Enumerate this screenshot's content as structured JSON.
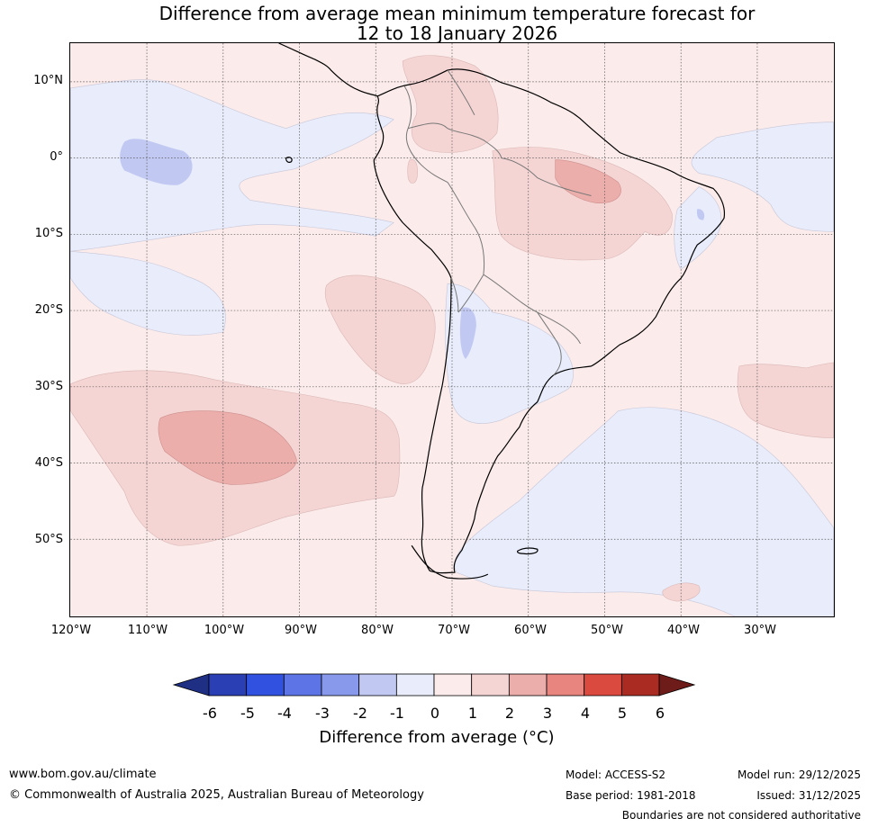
{
  "title": {
    "line1": "Difference from average mean minimum temperature forecast for",
    "line2": "12 to 18 January 2026"
  },
  "map": {
    "lat_labels": [
      "10°N",
      "0°",
      "10°S",
      "20°S",
      "30°S",
      "40°S",
      "50°S"
    ],
    "lon_labels": [
      "120°W",
      "110°W",
      "100°W",
      "90°W",
      "80°W",
      "70°W",
      "60°W",
      "50°W",
      "40°W",
      "30°W"
    ]
  },
  "colorbar": {
    "ticks": [
      "-6",
      "-5",
      "-4",
      "-3",
      "-2",
      "-1",
      "0",
      "1",
      "2",
      "3",
      "4",
      "5",
      "6"
    ],
    "colors": [
      "#1e2f84",
      "#2a3fb4",
      "#3152e0",
      "#5d74e6",
      "#8899eb",
      "#c1c9f3",
      "#e8ecfb",
      "#fbebea",
      "#f5d5d4",
      "#ebaeab",
      "#e8857f",
      "#db4a3e",
      "#aa2b22",
      "#6e1c1a"
    ],
    "label": "Difference from average (°C)"
  },
  "footer": {
    "website": "www.bom.gov.au/climate",
    "copyright": "© Commonwealth of Australia 2025, Australian Bureau of Meteorology",
    "model": "Model: ACCESS-S2",
    "base_period": "Base period: 1981-2018",
    "model_run": "Model run: 29/12/2025",
    "issued": "Issued: 31/12/2025",
    "disclaimer": "Boundaries are not considered authoritative"
  }
}
